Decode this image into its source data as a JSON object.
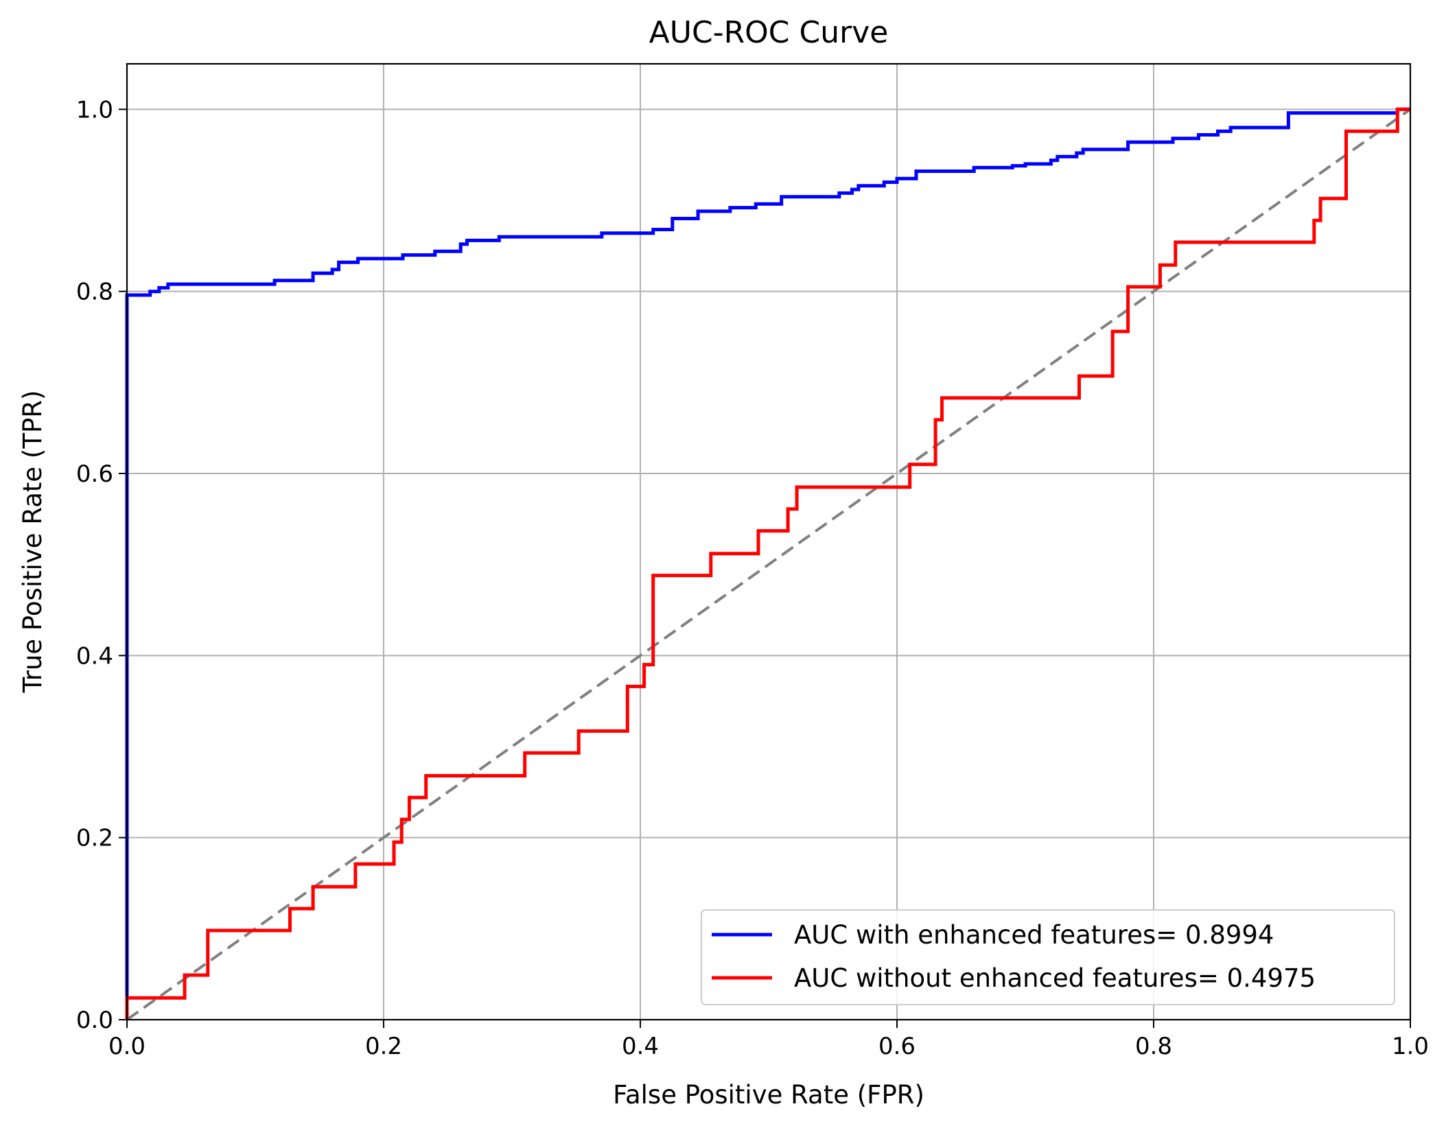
{
  "chart_data": {
    "type": "line",
    "title": "AUC-ROC Curve",
    "xlabel": "False Positive Rate (FPR)",
    "ylabel": "True Positive Rate (TPR)",
    "xlim": [
      0.0,
      1.0
    ],
    "ylim": [
      0.0,
      1.05
    ],
    "xticks": [
      "0.0",
      "0.2",
      "0.4",
      "0.6",
      "0.8",
      "1.0"
    ],
    "yticks": [
      "0.0",
      "0.2",
      "0.4",
      "0.6",
      "0.8",
      "1.0"
    ],
    "grid": true,
    "legend_position": "lower-right",
    "series": [
      {
        "name": "AUC with enhanced features= 0.8994",
        "color": "#0000ff",
        "step": true,
        "x": [
          0.0,
          0.0,
          0.018,
          0.018,
          0.025,
          0.025,
          0.032,
          0.032,
          0.115,
          0.115,
          0.145,
          0.145,
          0.16,
          0.16,
          0.165,
          0.165,
          0.18,
          0.18,
          0.215,
          0.215,
          0.24,
          0.24,
          0.26,
          0.26,
          0.265,
          0.265,
          0.29,
          0.29,
          0.37,
          0.37,
          0.41,
          0.41,
          0.425,
          0.425,
          0.445,
          0.445,
          0.47,
          0.47,
          0.49,
          0.49,
          0.51,
          0.51,
          0.555,
          0.555,
          0.565,
          0.565,
          0.57,
          0.57,
          0.59,
          0.59,
          0.6,
          0.6,
          0.615,
          0.615,
          0.66,
          0.66,
          0.69,
          0.69,
          0.7,
          0.7,
          0.72,
          0.72,
          0.725,
          0.725,
          0.74,
          0.74,
          0.745,
          0.745,
          0.78,
          0.78,
          0.815,
          0.815,
          0.835,
          0.835,
          0.85,
          0.85,
          0.86,
          0.86,
          0.905,
          0.905,
          0.99,
          0.99,
          1.0
        ],
        "y": [
          0.0,
          0.796,
          0.796,
          0.8,
          0.8,
          0.804,
          0.804,
          0.808,
          0.808,
          0.812,
          0.812,
          0.82,
          0.82,
          0.824,
          0.824,
          0.832,
          0.832,
          0.836,
          0.836,
          0.84,
          0.84,
          0.844,
          0.844,
          0.852,
          0.852,
          0.856,
          0.856,
          0.86,
          0.86,
          0.864,
          0.864,
          0.868,
          0.868,
          0.88,
          0.88,
          0.888,
          0.888,
          0.892,
          0.892,
          0.896,
          0.896,
          0.904,
          0.904,
          0.908,
          0.908,
          0.912,
          0.912,
          0.916,
          0.916,
          0.92,
          0.92,
          0.924,
          0.924,
          0.932,
          0.932,
          0.936,
          0.936,
          0.938,
          0.938,
          0.94,
          0.94,
          0.944,
          0.944,
          0.948,
          0.948,
          0.952,
          0.952,
          0.956,
          0.956,
          0.964,
          0.964,
          0.968,
          0.968,
          0.972,
          0.972,
          0.976,
          0.976,
          0.98,
          0.98,
          0.996,
          0.996,
          1.0,
          1.0
        ]
      },
      {
        "name": "AUC without enhanced features= 0.4975",
        "color": "#ff0000",
        "step": true,
        "x": [
          0.0,
          0.0,
          0.045,
          0.045,
          0.063,
          0.063,
          0.127,
          0.127,
          0.145,
          0.145,
          0.178,
          0.178,
          0.208,
          0.208,
          0.214,
          0.214,
          0.22,
          0.22,
          0.233,
          0.233,
          0.31,
          0.31,
          0.352,
          0.352,
          0.39,
          0.39,
          0.403,
          0.403,
          0.41,
          0.41,
          0.455,
          0.455,
          0.492,
          0.492,
          0.515,
          0.515,
          0.522,
          0.522,
          0.61,
          0.61,
          0.63,
          0.63,
          0.635,
          0.635,
          0.742,
          0.742,
          0.768,
          0.768,
          0.78,
          0.78,
          0.805,
          0.805,
          0.817,
          0.817,
          0.925,
          0.925,
          0.93,
          0.93,
          0.95,
          0.95,
          0.99,
          0.99,
          1.0
        ],
        "y": [
          0.0,
          0.024,
          0.024,
          0.049,
          0.049,
          0.098,
          0.098,
          0.122,
          0.122,
          0.146,
          0.146,
          0.171,
          0.171,
          0.195,
          0.195,
          0.22,
          0.22,
          0.244,
          0.244,
          0.268,
          0.268,
          0.293,
          0.293,
          0.317,
          0.317,
          0.366,
          0.366,
          0.39,
          0.39,
          0.488,
          0.488,
          0.512,
          0.512,
          0.537,
          0.537,
          0.561,
          0.561,
          0.585,
          0.585,
          0.61,
          0.61,
          0.659,
          0.659,
          0.683,
          0.683,
          0.707,
          0.707,
          0.756,
          0.756,
          0.805,
          0.805,
          0.829,
          0.829,
          0.854,
          0.854,
          0.878,
          0.878,
          0.902,
          0.902,
          0.976,
          0.976,
          1.0,
          1.0
        ]
      },
      {
        "name": "",
        "color": "#808080",
        "dashed": true,
        "x": [
          0.0,
          1.0
        ],
        "y": [
          0.0,
          1.0
        ]
      }
    ]
  }
}
